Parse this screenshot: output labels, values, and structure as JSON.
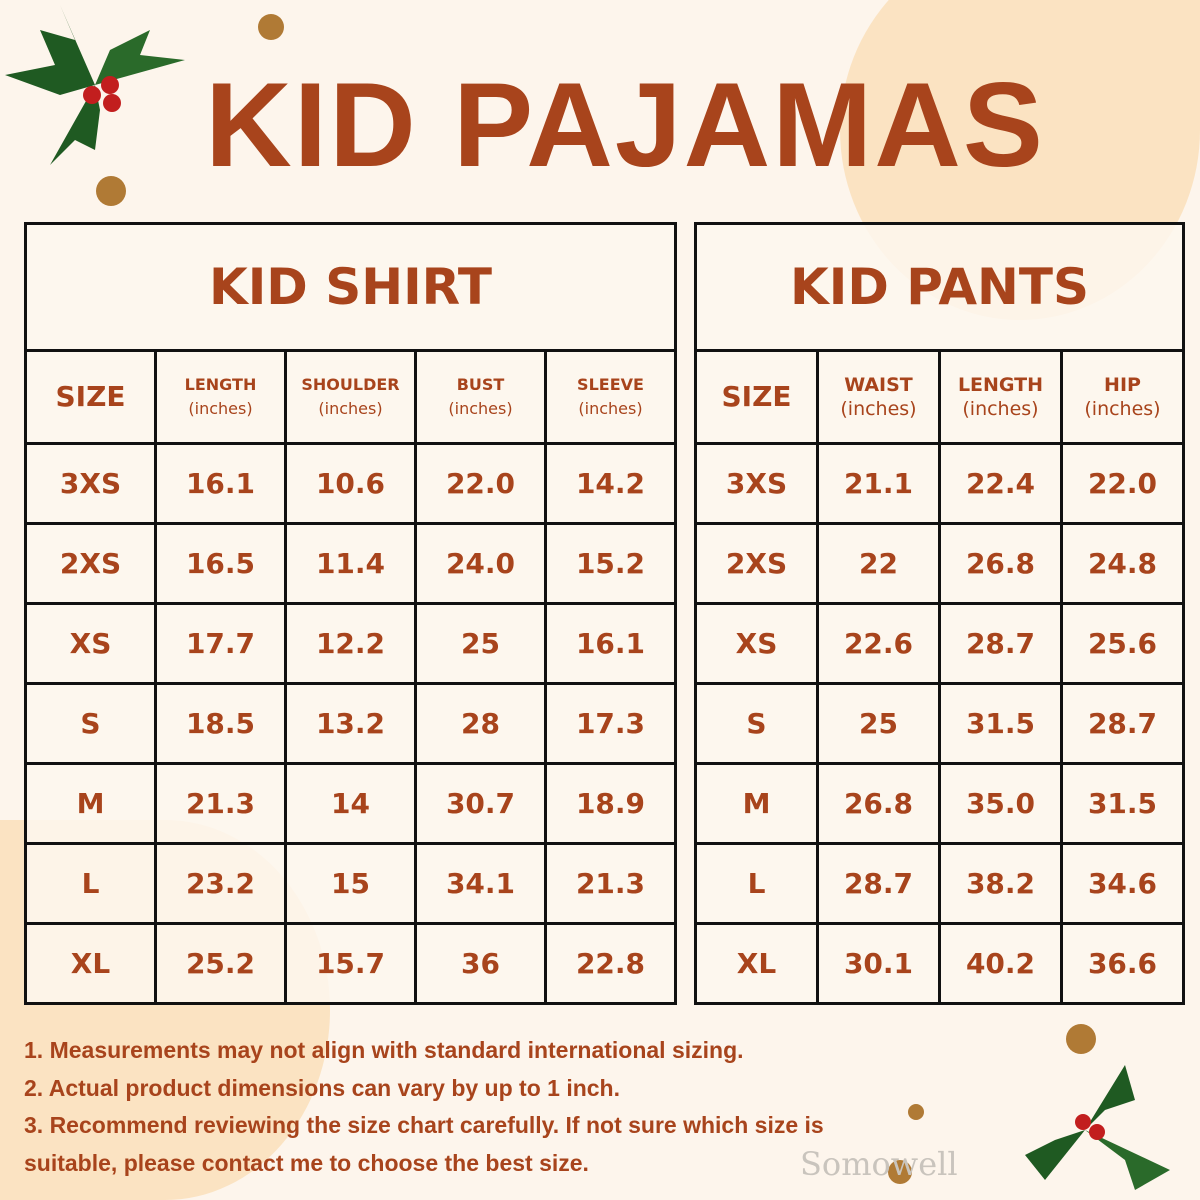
{
  "title": "KID PAJAMAS",
  "watermark": "Somowell",
  "shirt": {
    "title": "KID SHIRT",
    "headers": [
      {
        "name": "SIZE",
        "unit": ""
      },
      {
        "name": "LENGTH",
        "unit": "(inches)"
      },
      {
        "name": "SHOULDER",
        "unit": "(inches)"
      },
      {
        "name": "BUST",
        "unit": "(inches)"
      },
      {
        "name": "SLEEVE",
        "unit": "(inches)"
      }
    ],
    "rows": [
      [
        "3XS",
        "16.1",
        "10.6",
        "22.0",
        "14.2"
      ],
      [
        "2XS",
        "16.5",
        "11.4",
        "24.0",
        "15.2"
      ],
      [
        "XS",
        "17.7",
        "12.2",
        "25",
        "16.1"
      ],
      [
        "S",
        "18.5",
        "13.2",
        "28",
        "17.3"
      ],
      [
        "M",
        "21.3",
        "14",
        "30.7",
        "18.9"
      ],
      [
        "L",
        "23.2",
        "15",
        "34.1",
        "21.3"
      ],
      [
        "XL",
        "25.2",
        "15.7",
        "36",
        "22.8"
      ]
    ]
  },
  "pants": {
    "title": "KID PANTS",
    "headers": [
      {
        "name": "SIZE",
        "unit": ""
      },
      {
        "name": "WAIST",
        "unit": "(inches)"
      },
      {
        "name": "LENGTH",
        "unit": "(inches)"
      },
      {
        "name": "HIP",
        "unit": "(inches)"
      }
    ],
    "rows": [
      [
        "3XS",
        "21.1",
        "22.4",
        "22.0"
      ],
      [
        "2XS",
        "22",
        "26.8",
        "24.8"
      ],
      [
        "XS",
        "22.6",
        "28.7",
        "25.6"
      ],
      [
        "S",
        "25",
        "31.5",
        "28.7"
      ],
      [
        "M",
        "26.8",
        "35.0",
        "31.5"
      ],
      [
        "L",
        "28.7",
        "38.2",
        "34.6"
      ],
      [
        "XL",
        "30.1",
        "40.2",
        "36.6"
      ]
    ]
  },
  "notes": [
    "1. Measurements may not align with standard international sizing.",
    "2. Actual product dimensions can vary by up to 1 inch.",
    "3. Recommend reviewing the size chart carefully. If not sure which size is",
    "suitable, please contact me to choose the best size."
  ],
  "colors": {
    "text": "#a8441c",
    "background": "#fdf5ec",
    "accent_blob": "#fbe3c2",
    "border": "#111111"
  }
}
